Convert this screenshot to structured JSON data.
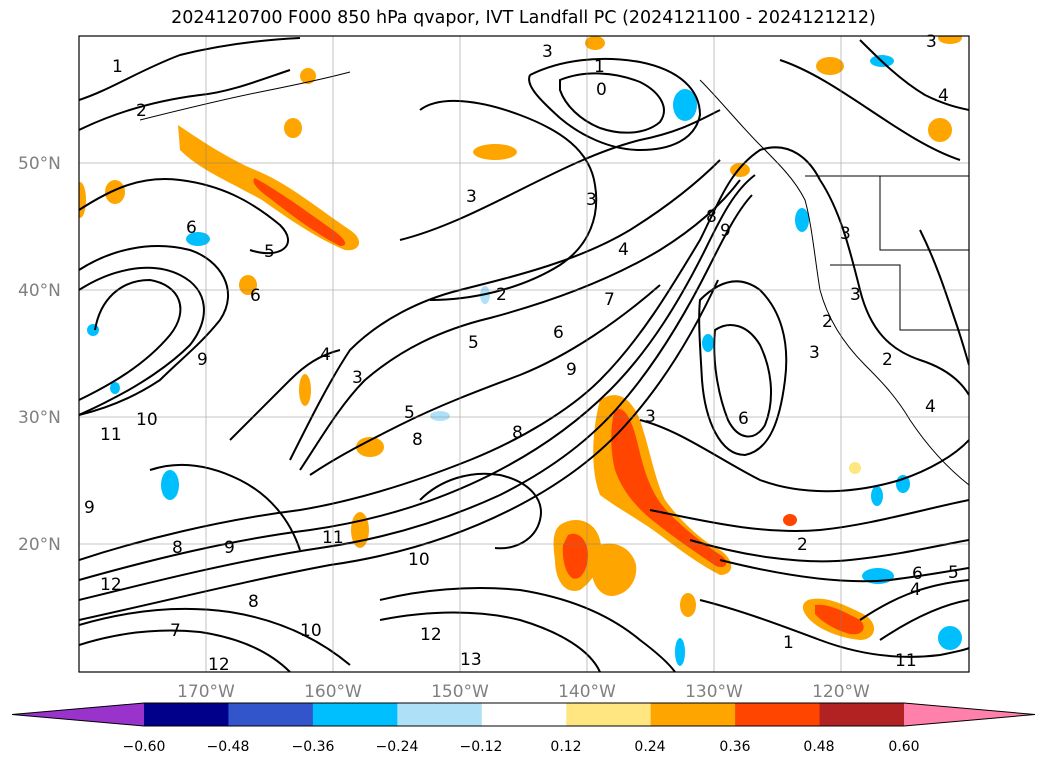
{
  "title": "2024120700 F000 850 hPa qvapor, IVT Landfall PC (2024121100 - 2024121212)",
  "map": {
    "lat_labels": [
      "50°N",
      "40°N",
      "30°N",
      "20°N"
    ],
    "lon_labels": [
      "170°W",
      "160°W",
      "150°W",
      "140°W",
      "130°W",
      "120°W"
    ],
    "grid": true
  },
  "colorbar": {
    "ticks": [
      "−0.60",
      "−0.48",
      "−0.36",
      "−0.24",
      "−0.12",
      "0.12",
      "0.24",
      "0.36",
      "0.48",
      "0.60"
    ],
    "colors": [
      "#9933cc",
      "#00008b",
      "#3355cc",
      "#00bfff",
      "#aee1f7",
      "#ffffff",
      "#ffe680",
      "#ffa500",
      "#ff4500",
      "#b22222",
      "#ff80aa"
    ],
    "extend": "both"
  },
  "contour_labels": [
    {
      "text": "1"
    },
    {
      "text": "2"
    },
    {
      "text": "3"
    },
    {
      "text": "1"
    },
    {
      "text": "0"
    },
    {
      "text": "3"
    },
    {
      "text": "4"
    },
    {
      "text": "3"
    },
    {
      "text": "3"
    },
    {
      "text": "6"
    },
    {
      "text": "5"
    },
    {
      "text": "3"
    },
    {
      "text": "3"
    },
    {
      "text": "4"
    },
    {
      "text": "2"
    },
    {
      "text": "8"
    },
    {
      "text": "9"
    },
    {
      "text": "5"
    },
    {
      "text": "6"
    },
    {
      "text": "7"
    },
    {
      "text": "9"
    },
    {
      "text": "9"
    },
    {
      "text": "10"
    },
    {
      "text": "11"
    },
    {
      "text": "6"
    },
    {
      "text": "4"
    },
    {
      "text": "3"
    },
    {
      "text": "5"
    },
    {
      "text": "8"
    },
    {
      "text": "3"
    },
    {
      "text": "6"
    },
    {
      "text": "2"
    },
    {
      "text": "9"
    },
    {
      "text": "8"
    },
    {
      "text": "9"
    },
    {
      "text": "8"
    },
    {
      "text": "10"
    },
    {
      "text": "11"
    },
    {
      "text": "12"
    },
    {
      "text": "13"
    },
    {
      "text": "12"
    },
    {
      "text": "2"
    },
    {
      "text": "3"
    },
    {
      "text": "4"
    },
    {
      "text": "2"
    },
    {
      "text": "4"
    },
    {
      "text": "6"
    },
    {
      "text": "5"
    },
    {
      "text": "10"
    },
    {
      "text": "7"
    },
    {
      "text": "8"
    },
    {
      "text": "12"
    },
    {
      "text": "1"
    },
    {
      "text": "11"
    }
  ]
}
